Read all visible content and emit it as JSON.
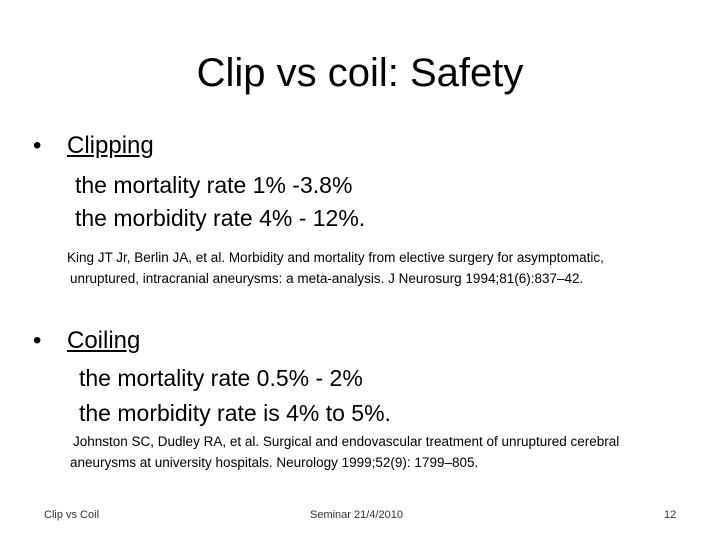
{
  "slide": {
    "title": "Clip vs coil: Safety",
    "sections": [
      {
        "bullet": "•",
        "heading": "Clipping",
        "lines": [
          "the mortality rate  1% -3.8%",
          "the morbidity rate 4% - 12%."
        ],
        "reference_1": "King JT Jr, Berlin JA, et al. Morbidity and mortality from elective surgery for asymptomatic,",
        "reference_2": "unruptured, intracranial aneurysms: a meta-analysis. J Neurosurg 1994;81(6):837–42."
      },
      {
        "bullet": "•",
        "heading": "Coiling",
        "lines": [
          "the mortality rate  0.5% - 2%",
          "the morbidity rate is 4% to 5%."
        ],
        "reference_1": "Johnston SC, Dudley RA, et al. Surgical and endovascular treatment of unruptured cerebral",
        "reference_2": "aneurysms at university hospitals. Neurology 1999;52(9): 1799–805."
      }
    ],
    "footer": {
      "left": "Clip vs Coil",
      "center": "Seminar   21/4/2010",
      "page_number": "12"
    }
  }
}
